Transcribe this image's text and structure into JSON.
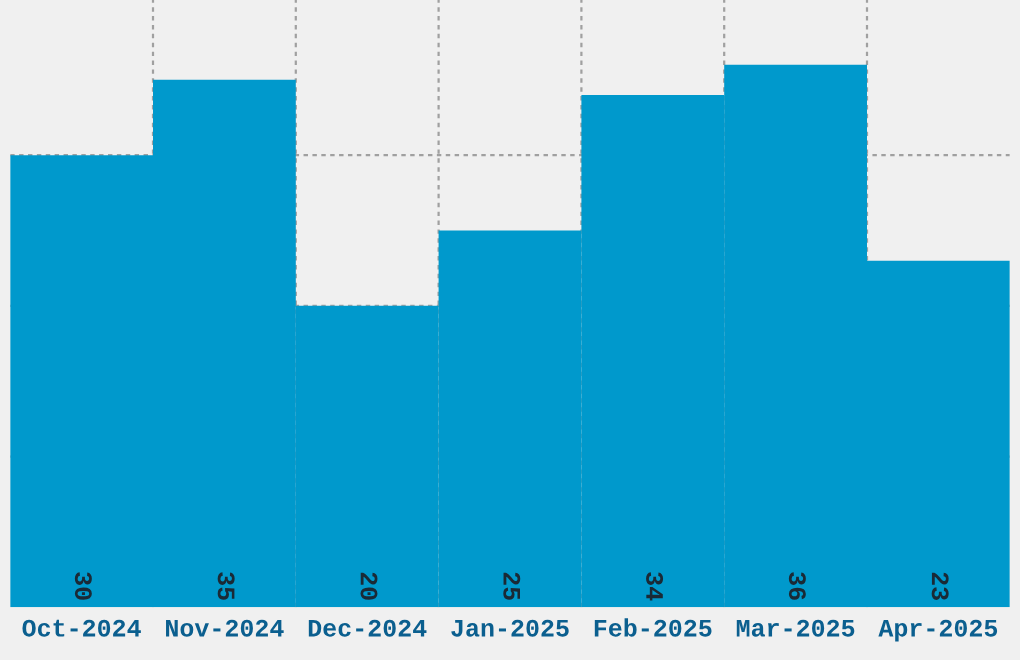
{
  "chart_data": {
    "type": "bar",
    "categories": [
      "Oct-2024",
      "Nov-2024",
      "Dec-2024",
      "Jan-2025",
      "Feb-2025",
      "Mar-2025",
      "Apr-2025"
    ],
    "values": [
      30,
      35,
      20,
      25,
      34,
      36,
      23
    ],
    "color": "#0099cc",
    "ylim": [
      0,
      40.3
    ],
    "yticks": [
      {
        "value": 10,
        "label": null
      },
      {
        "value": 20,
        "label": null
      },
      {
        "value": 30,
        "label": null
      }
    ],
    "tick_labels": "x",
    "grid": true,
    "data_labels": true
  }
}
